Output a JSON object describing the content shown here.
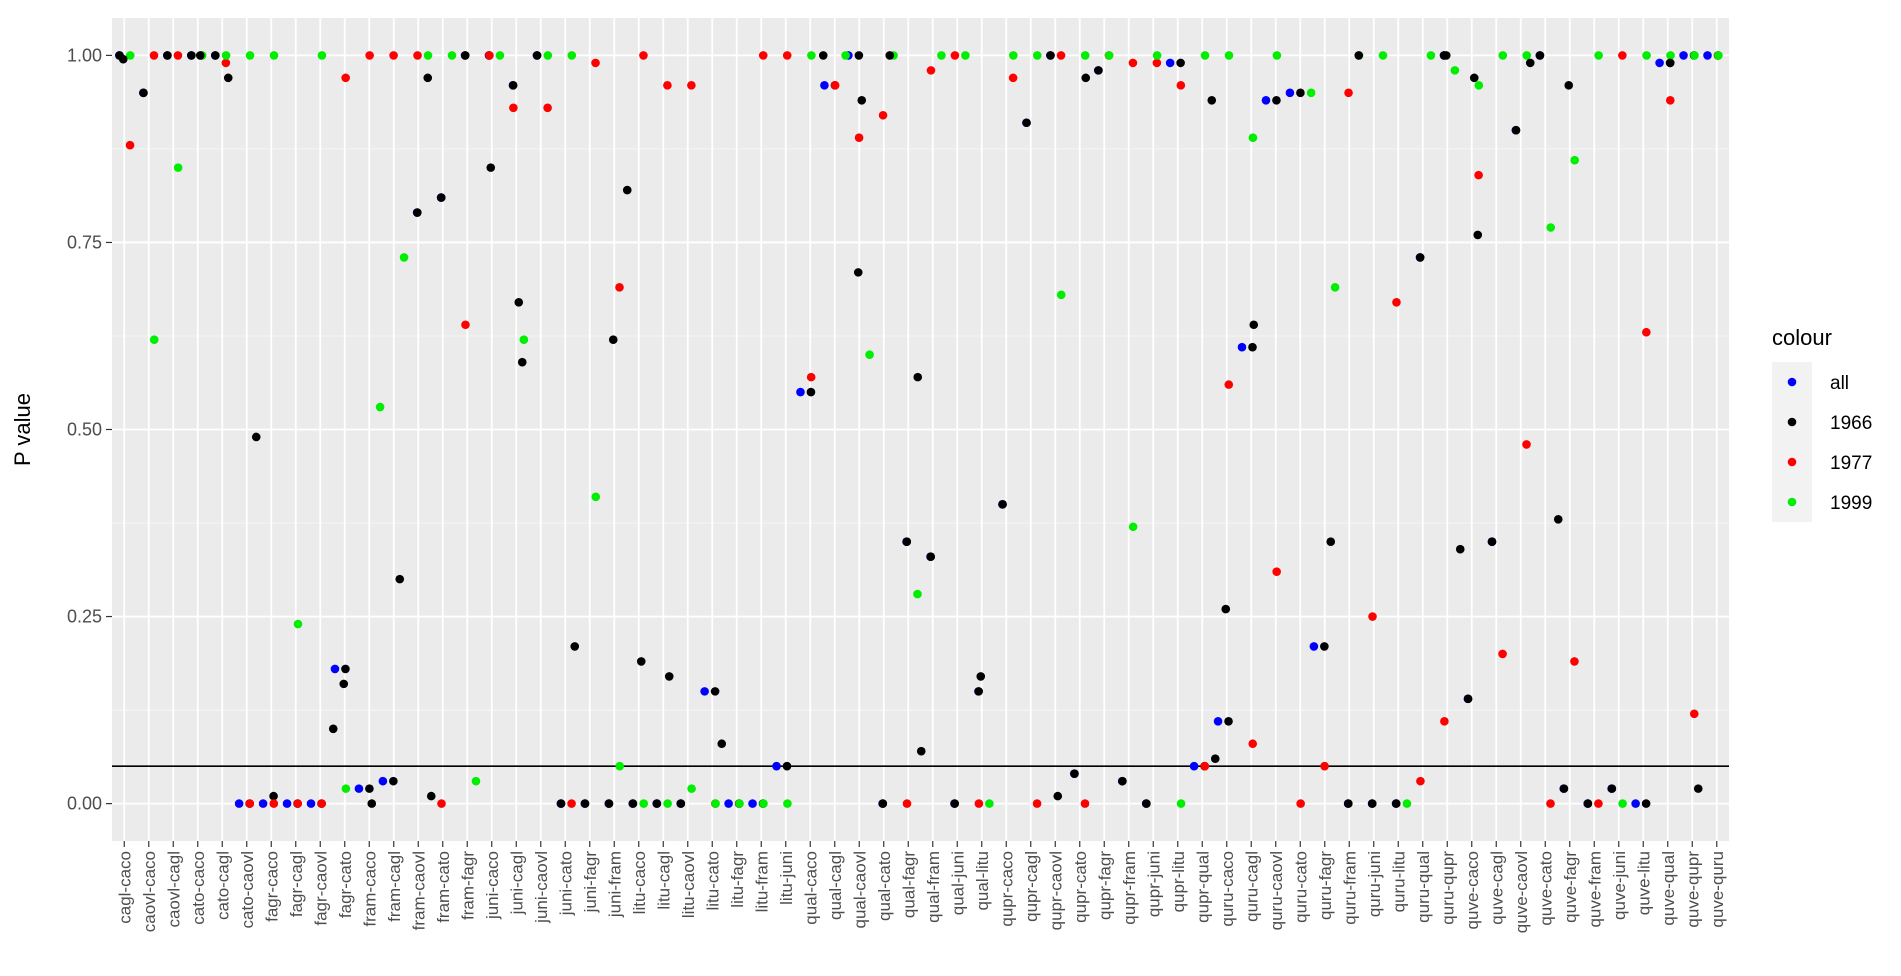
{
  "chart_data": {
    "type": "scatter",
    "ylabel": "P value",
    "xlabel": "",
    "ylim": [
      -0.05,
      1.05
    ],
    "yticks": [
      "0.00",
      "0.25",
      "0.50",
      "0.75",
      "1.00"
    ],
    "hline": 0.05,
    "grid": true,
    "legend": {
      "title": "colour",
      "placement": "right",
      "entries": [
        {
          "label": "all",
          "color": "#0000ff"
        },
        {
          "label": "1966",
          "color": "#000000"
        },
        {
          "label": "1977",
          "color": "#ff0000"
        },
        {
          "label": "1999",
          "color": "#00ee00"
        }
      ]
    },
    "categories": [
      "cagl-caco",
      "caovl-caco",
      "caovl-cagl",
      "cato-caco",
      "cato-cagl",
      "cato-caovl",
      "fagr-caco",
      "fagr-cagl",
      "fagr-caovl",
      "fagr-cato",
      "fram-caco",
      "fram-cagl",
      "fram-caovl",
      "fram-cato",
      "fram-fagr",
      "juni-caco",
      "juni-cagl",
      "juni-caovl",
      "juni-cato",
      "juni-fagr",
      "juni-fram",
      "litu-caco",
      "litu-cagl",
      "litu-caovl",
      "litu-cato",
      "litu-fagr",
      "litu-fram",
      "litu-juni",
      "qual-caco",
      "qual-cagl",
      "qual-caovl",
      "qual-cato",
      "qual-fagr",
      "qual-fram",
      "qual-juni",
      "qual-litu",
      "qupr-caco",
      "qupr-cagl",
      "qupr-caovl",
      "qupr-cato",
      "qupr-fagr",
      "qupr-fram",
      "qupr-juni",
      "qupr-litu",
      "qupr-qual",
      "quru-caco",
      "quru-cagl",
      "quru-caovl",
      "quru-cato",
      "quru-fagr",
      "quru-fram",
      "quru-juni",
      "quru-litu",
      "quru-qual",
      "quru-qupr",
      "quve-caco",
      "quve-cagl",
      "quve-caovl",
      "quve-cato",
      "quve-fagr",
      "quve-fram",
      "quve-juni",
      "quve-litu",
      "quve-qual",
      "quve-qupr",
      "quve-quru"
    ],
    "series": [
      {
        "name": "all",
        "values": [
          1.0,
          0.95,
          1.0,
          1.0,
          1.0,
          0.0,
          0.0,
          0.0,
          0.0,
          0.18,
          0.02,
          0.03,
          0.79,
          0.81,
          1.0,
          1.0,
          0.96,
          1.0,
          0.0,
          0.0,
          0.0,
          0.0,
          0.0,
          0.0,
          0.15,
          0.0,
          0.0,
          0.05,
          0.55,
          0.96,
          1.0,
          0.0,
          0.35,
          0.33,
          0.0,
          0.15,
          0.4,
          0.91,
          1.0,
          0.04,
          0.98,
          0.03,
          0.0,
          0.99,
          0.05,
          0.11,
          0.61,
          0.94,
          0.95,
          0.21,
          0.0,
          0.0,
          0.0,
          0.73,
          1.0,
          0.14,
          0.35,
          0.9,
          1.0,
          0.02,
          0.0,
          0.02,
          0.0,
          0.99,
          1.0,
          1.0
        ]
      },
      {
        "name": "1966",
        "values": [
          1.0,
          0.95,
          1.0,
          1.0,
          1.0,
          0.0,
          0.01,
          0.0,
          0.0,
          0.18,
          0.02,
          0.03,
          0.79,
          0.81,
          1.0,
          1.0,
          0.96,
          1.0,
          0.0,
          0.0,
          0.0,
          0.0,
          0.0,
          0.0,
          0.15,
          0.0,
          0.0,
          0.05,
          0.55,
          0.96,
          1.0,
          0.0,
          0.35,
          0.33,
          0.0,
          0.15,
          0.4,
          0.91,
          1.0,
          0.04,
          0.98,
          0.03,
          0.0,
          0.99,
          0.05,
          0.11,
          0.61,
          0.94,
          0.95,
          0.21,
          0.0,
          0.0,
          0.0,
          0.73,
          1.0,
          0.14,
          0.35,
          0.9,
          1.0,
          0.02,
          0.0,
          0.02,
          0.0,
          0.99,
          1.0,
          1.0
        ]
      },
      {
        "name": "1977",
        "values": [
          0.88,
          1.0,
          1.0,
          1.0,
          0.99,
          0.0,
          0.0,
          0.0,
          0.0,
          0.97,
          1.0,
          1.0,
          1.0,
          0.0,
          0.64,
          1.0,
          0.93,
          0.93,
          0.0,
          0.99,
          0.69,
          1.0,
          0.96,
          0.96,
          0.0,
          0.0,
          1.0,
          1.0,
          0.57,
          0.96,
          0.89,
          0.92,
          0.0,
          0.98,
          1.0,
          0.0,
          0.97,
          0.0,
          1.0,
          0.0,
          1.0,
          0.99,
          0.99,
          0.96,
          0.05,
          0.56,
          0.08,
          0.31,
          0.0,
          0.05,
          0.95,
          0.25,
          0.67,
          0.03,
          0.11,
          0.84,
          0.2,
          0.48,
          0.0,
          0.19,
          0.0,
          1.0,
          0.63,
          0.94,
          0.12,
          1.0
        ]
      },
      {
        "name": "1999",
        "values": [
          1.0,
          0.62,
          0.85,
          1.0,
          1.0,
          1.0,
          1.0,
          0.24,
          1.0,
          0.02,
          0.53,
          0.73,
          1.0,
          1.0,
          0.03,
          1.0,
          0.62,
          1.0,
          1.0,
          0.41,
          0.05,
          0.0,
          0.0,
          0.02,
          0.0,
          0.0,
          0.0,
          0.0,
          1.0,
          1.0,
          0.6,
          1.0,
          0.28,
          1.0,
          1.0,
          0.0,
          1.0,
          1.0,
          0.68,
          1.0,
          1.0,
          0.37,
          1.0,
          0.0,
          1.0,
          1.0,
          0.89,
          1.0,
          0.95,
          0.69,
          1.0,
          1.0,
          0.0,
          1.0,
          0.98,
          0.96,
          1.0,
          1.0,
          0.77,
          0.86,
          1.0,
          0.0,
          1.0,
          1.0,
          1.0,
          1.0
        ]
      }
    ],
    "extra_points_1966": [
      {
        "x": "cagl-caco",
        "y": 0.995
      },
      {
        "x": "cato-caco",
        "y": 1.0
      },
      {
        "x": "cato-cagl",
        "y": 0.97
      },
      {
        "x": "cato-caovl",
        "y": 0.49
      },
      {
        "x": "fagr-caovl",
        "y": 0.1
      },
      {
        "x": "fagr-cato",
        "y": 0.16
      },
      {
        "x": "fram-caco",
        "y": 0.0
      },
      {
        "x": "fram-cagl",
        "y": 0.3
      },
      {
        "x": "fram-caovl",
        "y": 0.97
      },
      {
        "x": "fram-caovl",
        "y": 0.01
      },
      {
        "x": "juni-caco",
        "y": 0.85
      },
      {
        "x": "juni-cagl",
        "y": 0.67
      },
      {
        "x": "juni-cagl",
        "y": 0.59
      },
      {
        "x": "juni-cato",
        "y": 0.21
      },
      {
        "x": "juni-fram",
        "y": 0.82
      },
      {
        "x": "juni-fram",
        "y": 0.62
      },
      {
        "x": "litu-caco",
        "y": 0.19
      },
      {
        "x": "litu-cagl",
        "y": 0.17
      },
      {
        "x": "litu-cato",
        "y": 0.08
      },
      {
        "x": "qual-caco",
        "y": 1.0
      },
      {
        "x": "qual-caovl",
        "y": 0.71
      },
      {
        "x": "qual-caovl",
        "y": 0.94
      },
      {
        "x": "qual-cato",
        "y": 1.0
      },
      {
        "x": "qual-fagr",
        "y": 0.57
      },
      {
        "x": "qual-fagr",
        "y": 0.07
      },
      {
        "x": "qual-litu",
        "y": 0.17
      },
      {
        "x": "qupr-caovl",
        "y": 0.01
      },
      {
        "x": "qupr-cato",
        "y": 0.97
      },
      {
        "x": "qupr-qual",
        "y": 0.94
      },
      {
        "x": "qupr-qual",
        "y": 0.06
      },
      {
        "x": "quru-caco",
        "y": 0.26
      },
      {
        "x": "quru-cagl",
        "y": 0.64
      },
      {
        "x": "quru-fagr",
        "y": 0.35
      },
      {
        "x": "quru-fram",
        "y": 1.0
      },
      {
        "x": "quru-qupr",
        "y": 0.34
      },
      {
        "x": "quru-qupr",
        "y": 1.0
      },
      {
        "x": "quve-caco",
        "y": 0.97
      },
      {
        "x": "quve-caco",
        "y": 0.76
      },
      {
        "x": "quve-caovl",
        "y": 0.99
      },
      {
        "x": "quve-cato",
        "y": 0.38
      },
      {
        "x": "quve-fagr",
        "y": 0.96
      },
      {
        "x": "quve-qual",
        "y": 0.99
      },
      {
        "x": "quve-qupr",
        "y": 0.02
      }
    ]
  }
}
